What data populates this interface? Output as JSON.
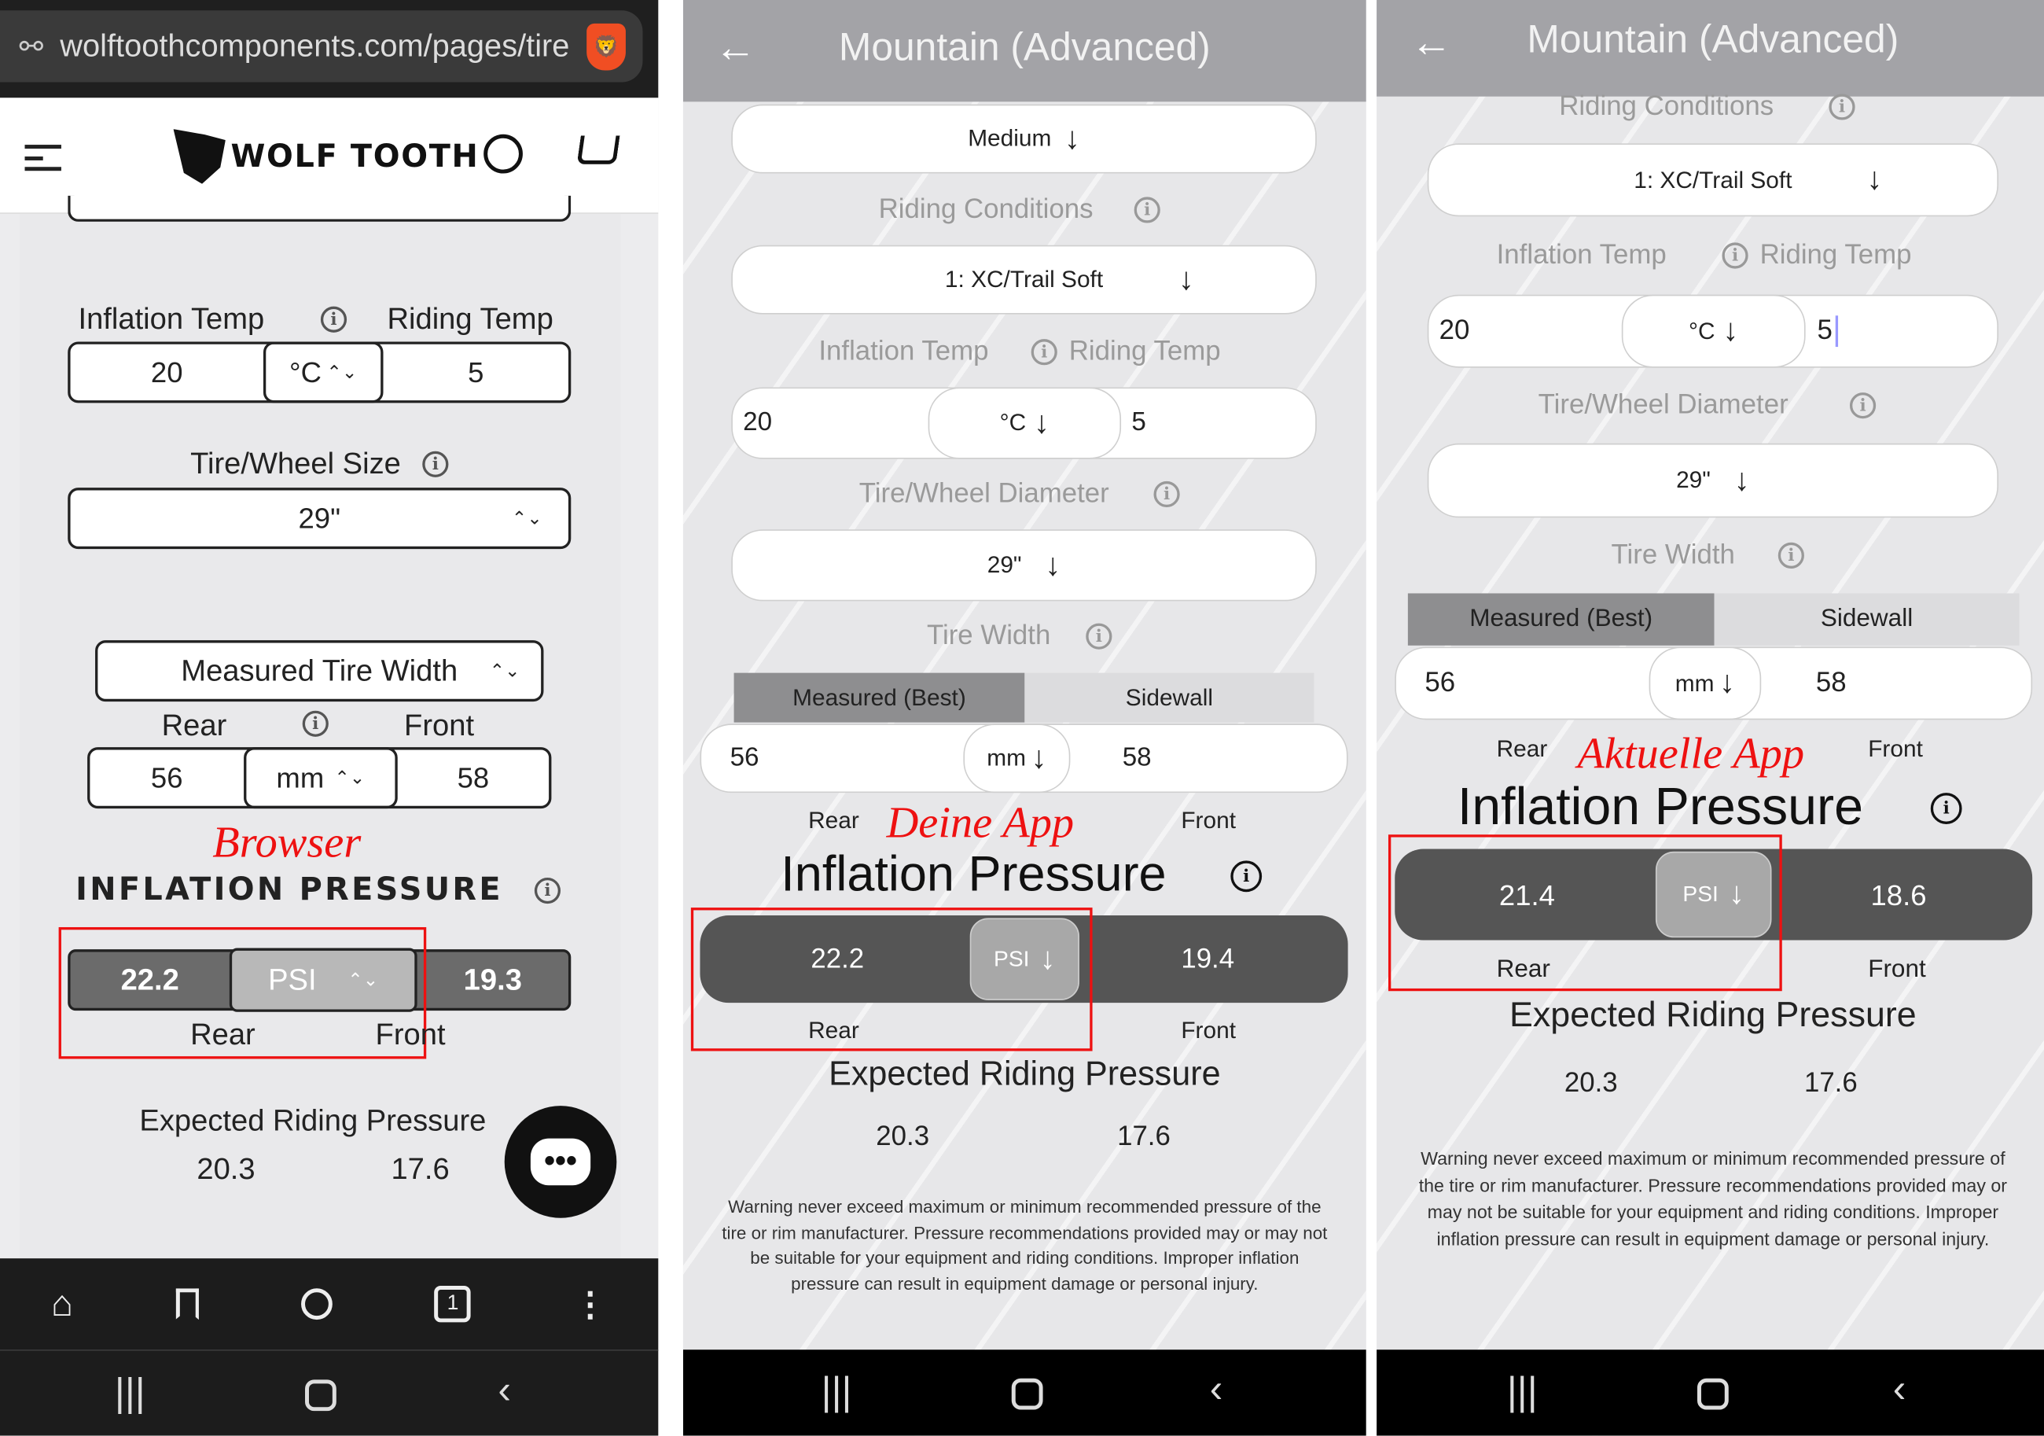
{
  "browser": {
    "url": "wolftoothcomponents.com/pages/tire",
    "logo_text": "WOLF TOOTH",
    "inflation_temp_label": "Inflation Temp",
    "riding_temp_label": "Riding Temp",
    "inflation_temp": "20",
    "temp_unit": "°C",
    "riding_temp": "5",
    "tire_size_label": "Tire/Wheel Size",
    "tire_size": "29\"",
    "width_mode": "Measured Tire Width",
    "rear_label": "Rear",
    "front_label": "Front",
    "rear_width": "56",
    "width_unit": "mm",
    "front_width": "58",
    "annotation": "Browser",
    "inflation_pressure_title": "INFLATION PRESSURE",
    "rear_pressure": "22.2",
    "pressure_unit": "PSI",
    "front_pressure": "19.3",
    "expected_title": "Expected Riding Pressure",
    "expected_rear": "20.3",
    "expected_front": "17.6",
    "tab_count": "1"
  },
  "app1": {
    "title": "Mountain (Advanced)",
    "top_select": "Medium",
    "riding_conditions_label": "Riding Conditions",
    "riding_conditions": "1: XC/Trail Soft",
    "inflation_temp_label": "Inflation Temp",
    "riding_temp_label": "Riding Temp",
    "inflation_temp": "20",
    "temp_unit": "°C",
    "riding_temp": "5",
    "diameter_label": "Tire/Wheel Diameter",
    "diameter": "29\"",
    "tire_width_label": "Tire Width",
    "seg_measured": "Measured (Best)",
    "seg_sidewall": "Sidewall",
    "rear_width": "56",
    "width_unit": "mm",
    "front_width": "58",
    "rear_label": "Rear",
    "front_label": "Front",
    "annotation": "Deine App",
    "inflation_pressure_title": "Inflation Pressure",
    "rear_pressure": "22.2",
    "pressure_unit": "PSI",
    "front_pressure": "19.4",
    "expected_title": "Expected Riding Pressure",
    "expected_rear": "20.3",
    "expected_front": "17.6",
    "warning": "Warning never exceed maximum or minimum recommended pressure of the tire or rim manufacturer. Pressure recommendations provided may or may not be suitable for your equipment and riding conditions. Improper inflation pressure can result in equipment damage or personal injury."
  },
  "app2": {
    "title": "Mountain (Advanced)",
    "riding_conditions_label": "Riding Conditions",
    "riding_conditions": "1: XC/Trail Soft",
    "inflation_temp_label": "Inflation Temp",
    "riding_temp_label": "Riding Temp",
    "inflation_temp": "20",
    "temp_unit": "°C",
    "riding_temp": "5",
    "diameter_label": "Tire/Wheel Diameter",
    "diameter": "29\"",
    "tire_width_label": "Tire Width",
    "seg_measured": "Measured (Best)",
    "seg_sidewall": "Sidewall",
    "rear_width": "56",
    "width_unit": "mm",
    "front_width": "58",
    "rear_label": "Rear",
    "front_label": "Front",
    "annotation": "Aktuelle App",
    "inflation_pressure_title": "Inflation Pressure",
    "rear_pressure": "21.4",
    "pressure_unit": "PSI",
    "front_pressure": "18.6",
    "expected_title": "Expected Riding Pressure",
    "expected_rear": "20.3",
    "expected_front": "17.6",
    "warning": "Warning never exceed maximum or minimum recommended pressure of the tire or rim manufacturer. Pressure recommendations provided may or may not be suitable for your equipment and riding conditions. Improper inflation pressure can result in equipment damage or personal injury."
  },
  "colors": {
    "annotation": "#e11111",
    "app_header": "#a3a3a7",
    "pressure_bar": "#555555",
    "browser_bar": "#6b6b6b"
  }
}
